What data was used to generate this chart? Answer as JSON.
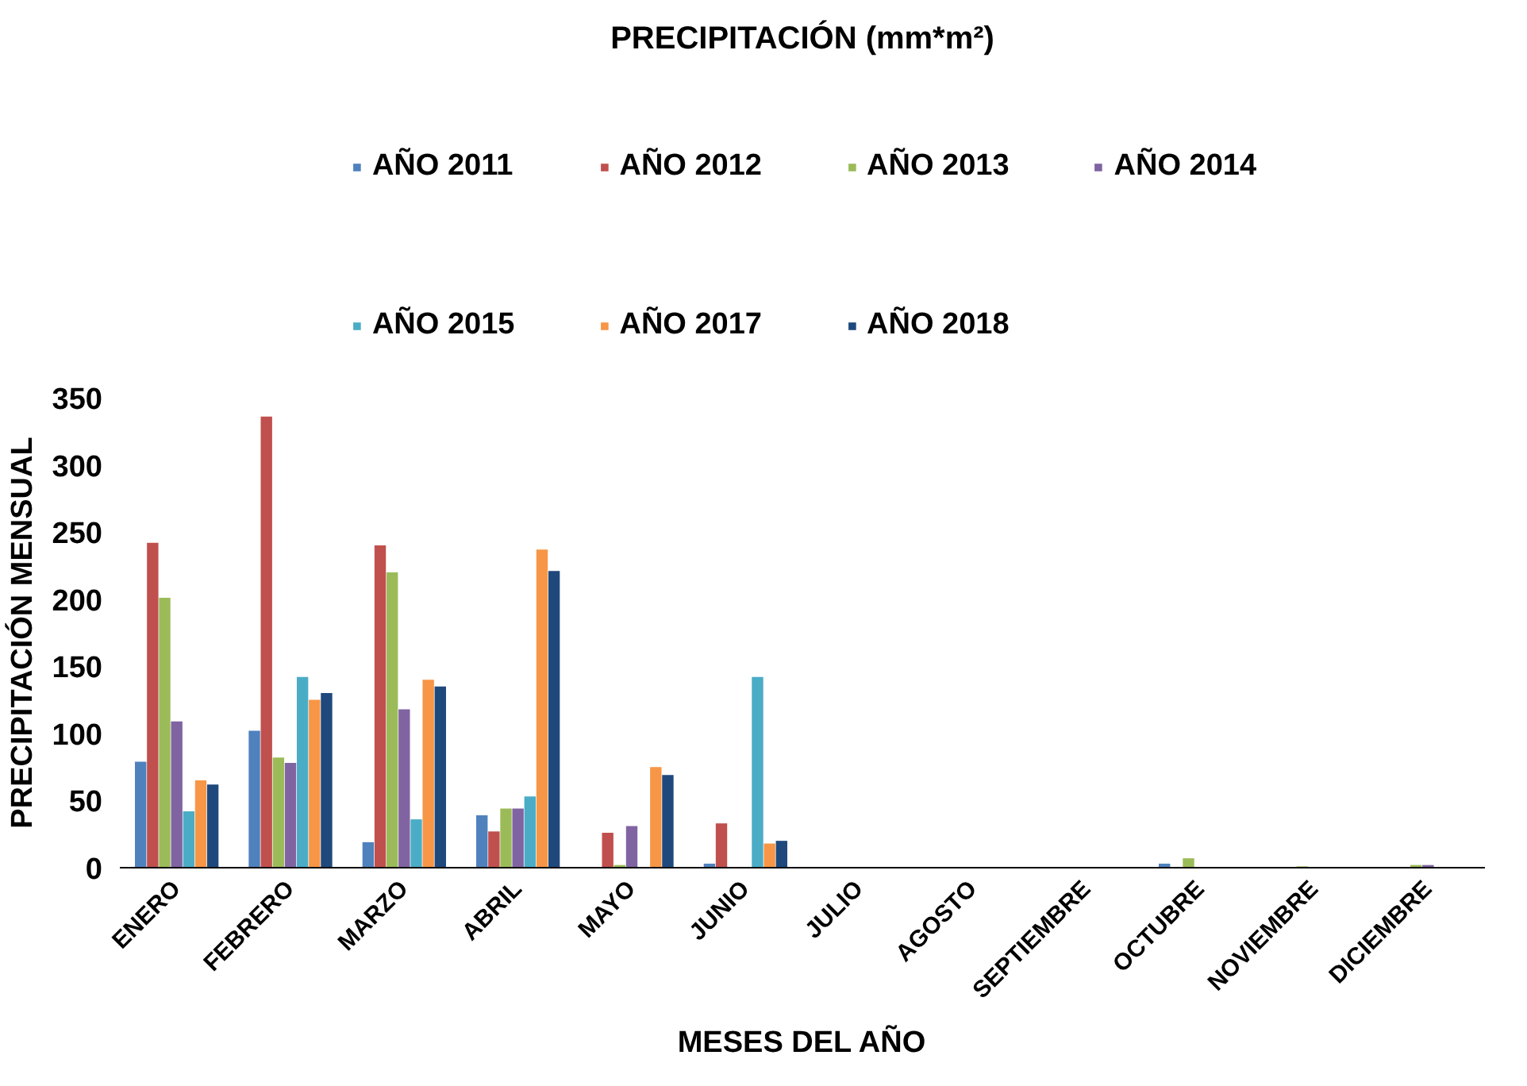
{
  "chart_data": {
    "type": "bar",
    "title": "PRECIPITACIÓN (mm*m²)",
    "xlabel": "MESES DEL AÑO",
    "ylabel": "PRECIPITACIÓN MENSUAL",
    "categories": [
      "ENERO",
      "FEBRERO",
      "MARZO",
      "ABRIL",
      "MAYO",
      "JUNIO",
      "JULIO",
      "AGOSTO",
      "SEPTIEMBRE",
      "OCTUBRE",
      "NOVIEMBRE",
      "DICIEMBRE"
    ],
    "series": [
      {
        "name": "AÑO 2011",
        "color": "#4f81bd",
        "values": [
          79,
          102,
          19,
          39,
          0,
          3,
          0,
          0,
          0,
          3,
          0,
          0
        ]
      },
      {
        "name": "AÑO 2012",
        "color": "#c0504d",
        "values": [
          242,
          336,
          240,
          27,
          26,
          33,
          0,
          0,
          0,
          0,
          0,
          0
        ]
      },
      {
        "name": "AÑO 2013",
        "color": "#9bbb59",
        "values": [
          201,
          82,
          220,
          44,
          2,
          0,
          0,
          0,
          0,
          7,
          1,
          2
        ]
      },
      {
        "name": "AÑO 2014",
        "color": "#8064a2",
        "values": [
          109,
          78,
          118,
          44,
          31,
          0,
          0,
          0,
          0,
          0,
          0,
          2
        ]
      },
      {
        "name": "AÑO 2015",
        "color": "#4bacc6",
        "values": [
          42,
          142,
          36,
          53,
          0,
          142,
          0,
          0,
          0,
          0,
          0,
          0
        ]
      },
      {
        "name": "AÑO 2017",
        "color": "#f79646",
        "values": [
          65,
          125,
          140,
          237,
          75,
          18,
          0,
          0,
          0,
          0,
          0,
          0
        ]
      },
      {
        "name": "AÑO 2018",
        "color": "#1f497d",
        "values": [
          62,
          130,
          135,
          221,
          69,
          20,
          0,
          0,
          0,
          0,
          0,
          0
        ]
      }
    ],
    "ylim": [
      0,
      350
    ],
    "yticks": [
      0,
      50,
      100,
      150,
      200,
      250,
      300,
      350
    ],
    "grid": false,
    "legend": "top"
  }
}
